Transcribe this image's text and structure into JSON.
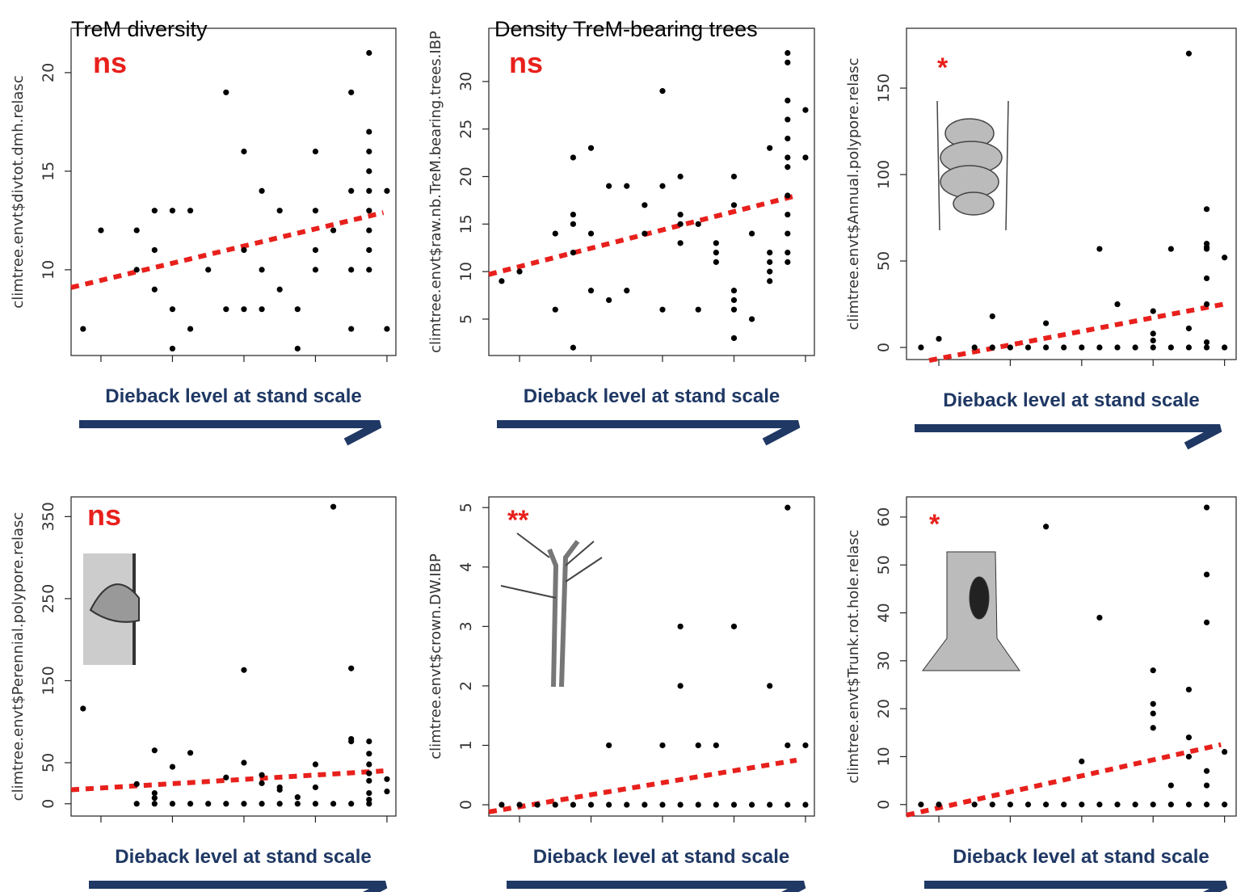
{
  "chart_data": [
    {
      "type": "scatter",
      "title": "TreM diversity",
      "y_label": "climtree.envt$divtot.dmh.relasc",
      "x_label": "Dieback level at stand scale",
      "annotation": "ns",
      "color": "#000000",
      "x": [
        -1,
        0,
        2,
        2,
        3,
        3,
        3,
        4,
        4,
        4,
        5,
        5,
        6,
        7,
        7,
        8,
        8,
        8,
        9,
        9,
        9,
        10,
        10,
        11,
        11,
        12,
        12,
        12,
        12,
        13,
        14,
        14,
        14,
        14,
        15,
        15,
        15,
        15,
        15,
        15,
        15,
        15,
        15,
        16,
        16
      ],
      "values": [
        7,
        12,
        12,
        10,
        13,
        11,
        9,
        13,
        8,
        6,
        13,
        7,
        10,
        19,
        8,
        16,
        11,
        8,
        14,
        10,
        8,
        13,
        9,
        8,
        6,
        16,
        13,
        11,
        10,
        12,
        19,
        14,
        10,
        7,
        21,
        17,
        16,
        15,
        14,
        13,
        12,
        11,
        10,
        14,
        7
      ],
      "trend": {
        "x": [
          -1.67,
          15.8
        ],
        "values": [
          9.1,
          12.9
        ],
        "color": "#e8201c"
      },
      "xlim": [
        -1.67,
        16.5
      ],
      "xticks": [
        0,
        4,
        8,
        12,
        16
      ],
      "ylim": [
        5.65,
        22.25
      ],
      "yticks": [
        10,
        15,
        20
      ]
    },
    {
      "type": "scatter",
      "title": "Density TreM-bearing trees",
      "y_label": "climtree.envt$raw.nb.TreM.bearing.trees.IBP",
      "x_label": "Dieback level at stand scale",
      "annotation": "ns",
      "color": "#000000",
      "x": [
        -1,
        0,
        2,
        2,
        3,
        3,
        3,
        3,
        3,
        4,
        4,
        4,
        5,
        5,
        6,
        6,
        7,
        7,
        8,
        8,
        8,
        9,
        9,
        9,
        9,
        10,
        10,
        11,
        11,
        11,
        12,
        12,
        12,
        12,
        12,
        12,
        13,
        13,
        14,
        14,
        14,
        14,
        14,
        15,
        15,
        15,
        15,
        15,
        15,
        15,
        15,
        15,
        15,
        15,
        15,
        16,
        16
      ],
      "values": [
        9,
        10,
        6,
        14,
        2,
        22,
        16,
        15,
        12,
        23,
        14,
        8,
        7,
        19,
        19,
        8,
        17,
        14,
        29,
        19,
        6,
        20,
        16,
        15,
        13,
        6,
        15,
        13,
        12,
        11,
        20,
        17,
        8,
        7,
        6,
        3,
        14,
        5,
        23,
        12,
        11,
        10,
        9,
        33,
        32,
        28,
        26,
        24,
        22,
        21,
        18,
        16,
        14,
        12,
        11,
        27,
        22
      ],
      "trend": {
        "x": [
          -1.72,
          15.5
        ],
        "values": [
          9.7,
          18
        ],
        "color": "#e8201c"
      },
      "xlim": [
        -1.72,
        16.5
      ],
      "xticks": [
        0,
        4,
        8,
        12,
        16
      ],
      "ylim": [
        1.17,
        35.6
      ],
      "yticks": [
        5,
        10,
        15,
        20,
        25,
        30
      ]
    },
    {
      "type": "scatter",
      "y_label": "climtree.envt$Annual.polypore.relasc",
      "x_label": "Dieback level at stand scale",
      "annotation": "*",
      "color": "#000000",
      "x": [
        -1,
        0,
        2,
        3,
        3,
        4,
        5,
        6,
        6,
        7,
        8,
        9,
        9,
        10,
        10,
        11,
        12,
        12,
        12,
        12,
        13,
        13,
        14,
        14,
        14,
        15,
        15,
        15,
        15,
        15,
        15,
        15,
        15,
        16,
        16
      ],
      "values": [
        0,
        5,
        0,
        18,
        0,
        0,
        0,
        14,
        0,
        0,
        0,
        57,
        0,
        25,
        0,
        0,
        21,
        8,
        4,
        0,
        57,
        0,
        170,
        11,
        0,
        80,
        60,
        58,
        57,
        40,
        25,
        3,
        0,
        52,
        0
      ],
      "trend": {
        "x": [
          -0.54,
          15.95
        ],
        "values": [
          -7.5,
          25
        ],
        "color": "#e8201c"
      },
      "xlim": [
        -1.81,
        16.65
      ],
      "xticks": [
        0,
        4,
        8,
        12,
        16
      ],
      "ylim": [
        -7,
        184.6
      ],
      "yticks": [
        0,
        50,
        100,
        150
      ]
    },
    {
      "type": "scatter",
      "y_label": "climtree.envt$Perennial.polypore.relasc",
      "x_label": "Dieback level at stand scale",
      "annotation": "ns",
      "color": "#000000",
      "x": [
        -1,
        2,
        2,
        3,
        3,
        3,
        3,
        4,
        4,
        5,
        5,
        6,
        7,
        7,
        8,
        8,
        8,
        9,
        9,
        9,
        10,
        10,
        10,
        11,
        11,
        12,
        12,
        12,
        13,
        13,
        14,
        14,
        14,
        14,
        15,
        15,
        15,
        15,
        15,
        15,
        15,
        15,
        16,
        16
      ],
      "values": [
        116,
        24,
        0,
        65,
        13,
        7,
        0,
        45,
        0,
        62,
        0,
        0,
        32,
        0,
        163,
        50,
        0,
        35,
        25,
        0,
        20,
        17,
        0,
        8,
        0,
        48,
        20,
        0,
        362,
        0,
        165,
        79,
        76,
        0,
        76,
        61,
        48,
        37,
        28,
        13,
        5,
        0,
        30,
        15
      ],
      "trend": {
        "x": [
          -1.67,
          15.8
        ],
        "values": [
          17,
          40
        ],
        "color": "#e8201c"
      },
      "xlim": [
        -1.67,
        16.5
      ],
      "xticks": [
        0,
        4,
        8,
        12,
        16
      ],
      "ylim": [
        -15,
        374
      ],
      "yticks": [
        0,
        50,
        150,
        250,
        350
      ]
    },
    {
      "type": "scatter",
      "y_label": "climtree.envt$crown.DW.IBP",
      "x_label": "Dieback level at stand scale",
      "annotation": "**",
      "color": "#000000",
      "x": [
        -1,
        0,
        1,
        2,
        3,
        4,
        5,
        5,
        6,
        7,
        8,
        8,
        9,
        9,
        9,
        10,
        10,
        11,
        11,
        12,
        12,
        13,
        14,
        14,
        15,
        15,
        15,
        16,
        16
      ],
      "values": [
        0,
        0,
        0,
        0,
        0,
        0,
        1,
        0,
        0,
        0,
        1,
        0,
        3,
        2,
        0,
        1,
        0,
        1,
        0,
        3,
        0,
        0,
        2,
        0,
        5,
        1,
        0,
        1,
        0
      ],
      "trend": {
        "x": [
          -1.72,
          15.5
        ],
        "values": [
          -0.12,
          0.75
        ],
        "color": "#e8201c"
      },
      "xlim": [
        -1.72,
        16.5
      ],
      "xticks": [
        0,
        4,
        8,
        12,
        16
      ],
      "ylim": [
        -0.19,
        5.18
      ],
      "yticks": [
        0,
        1,
        2,
        3,
        4,
        5
      ]
    },
    {
      "type": "scatter",
      "y_label": "climtree.envt$Trunk.rot.hole.relasc",
      "x_label": "Dieback level at stand scale",
      "annotation": "*",
      "color": "#000000",
      "x": [
        -1,
        0,
        2,
        3,
        4,
        5,
        6,
        6,
        7,
        8,
        8,
        9,
        9,
        10,
        11,
        12,
        12,
        12,
        12,
        12,
        13,
        13,
        14,
        14,
        14,
        14,
        15,
        15,
        15,
        15,
        15,
        15,
        16,
        16
      ],
      "values": [
        0,
        0,
        0,
        0,
        0,
        0,
        58,
        0,
        0,
        9,
        0,
        39,
        0,
        0,
        0,
        28,
        21,
        19,
        16,
        0,
        4,
        0,
        24,
        14,
        10,
        0,
        62,
        48,
        38,
        7,
        4,
        0,
        11,
        0
      ],
      "trend": {
        "x": [
          -1.81,
          15.8
        ],
        "values": [
          -2.2,
          12.5
        ],
        "color": "#e8201c"
      },
      "xlim": [
        -1.81,
        16.65
      ],
      "xticks": [
        0,
        4,
        8,
        12,
        16
      ],
      "ylim": [
        -2.4,
        64.2
      ],
      "yticks": [
        0,
        10,
        20,
        30,
        40,
        50,
        60
      ]
    }
  ]
}
